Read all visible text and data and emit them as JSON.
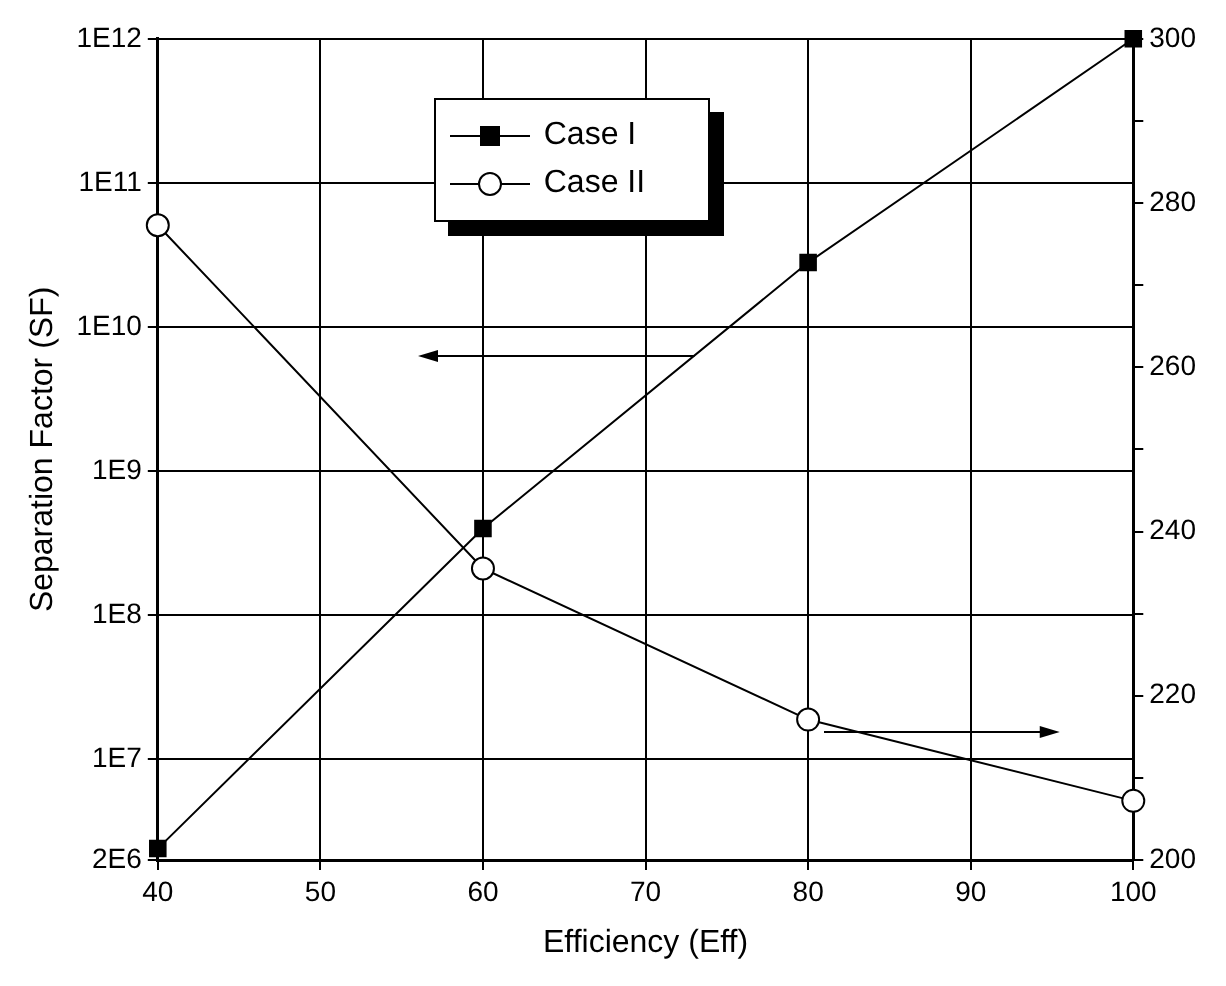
{
  "chart_data": {
    "type": "line",
    "xlabel": "Efficiency (Eff)",
    "ylabel": "Separation Factor (SF)",
    "x": [
      40,
      60,
      80,
      100
    ],
    "series": [
      {
        "name": "Case I",
        "color": "#000000",
        "marker": "square",
        "values": [
          2400000.0,
          400000000.0,
          28000000000.0,
          1000000000000.0
        ]
      },
      {
        "name": "Case II",
        "color": "#000000",
        "marker": "circle",
        "axis": "y2",
        "values": [
          277.3,
          235.5,
          217.1,
          207.2
        ]
      }
    ],
    "xlim": [
      40,
      100
    ],
    "xticks": [
      40,
      50,
      60,
      70,
      80,
      90,
      100
    ],
    "log": "y",
    "ylim": [
      2000000.0,
      1000000000000.0
    ],
    "yticks": [
      {
        "value": 2000000.0,
        "label": "2E6"
      },
      {
        "value": 10000000.0,
        "label": "1E7"
      },
      {
        "value": 100000000.0,
        "label": "1E8"
      },
      {
        "value": 1000000000.0,
        "label": "1E9"
      },
      {
        "value": 10000000000.0,
        "label": "1E10"
      },
      {
        "value": 100000000000.0,
        "label": "1E11"
      },
      {
        "value": 1000000000000.0,
        "label": "1E12"
      }
    ],
    "y2lim": [
      200,
      300
    ],
    "y2ticks": [
      200,
      {
        "value": 210,
        "label": null
      },
      220,
      {
        "value": 230,
        "label": null
      },
      240,
      {
        "value": 250,
        "label": null
      },
      260,
      {
        "value": 270,
        "label": null
      },
      280,
      {
        "value": 290,
        "label": null
      },
      300
    ],
    "grid": true,
    "legend": "top",
    "line_style": "solid"
  }
}
